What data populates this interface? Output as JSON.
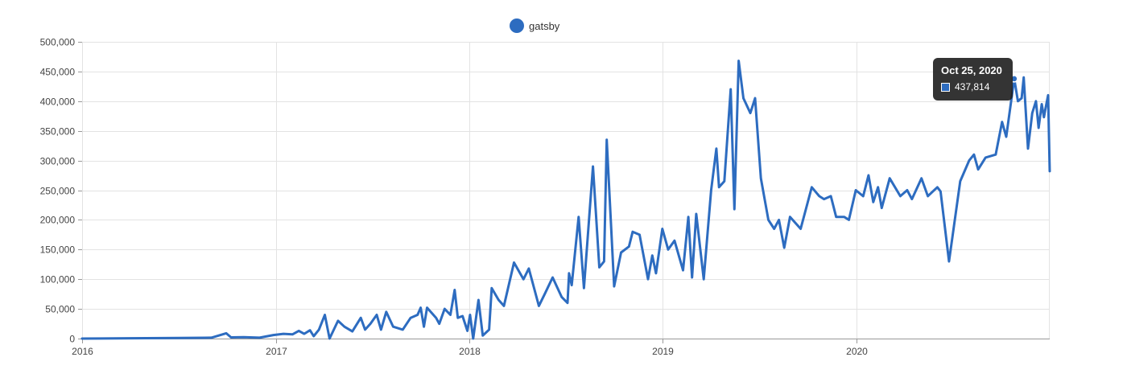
{
  "colors": {
    "series": "#2d6cc0",
    "grid": "#e3e3e3",
    "axis": "#999999"
  },
  "legend": {
    "label": "gatsby"
  },
  "tooltip": {
    "date": "Oct 25, 2020",
    "value": "437,814",
    "point_x": "2020-10-25",
    "point_y": 437814
  },
  "chart_data": {
    "type": "line",
    "title": "",
    "xlabel": "",
    "ylabel": "",
    "ylim": [
      0,
      500000
    ],
    "xlim": [
      "2016-01-01",
      "2020-12-31"
    ],
    "y_ticks": [
      {
        "value": 0,
        "label": "0"
      },
      {
        "value": 50000,
        "label": "50,000"
      },
      {
        "value": 100000,
        "label": "100,000"
      },
      {
        "value": 150000,
        "label": "150,000"
      },
      {
        "value": 200000,
        "label": "200,000"
      },
      {
        "value": 250000,
        "label": "250,000"
      },
      {
        "value": 300000,
        "label": "300,000"
      },
      {
        "value": 350000,
        "label": "350,000"
      },
      {
        "value": 400000,
        "label": "400,000"
      },
      {
        "value": 450000,
        "label": "450,000"
      },
      {
        "value": 500000,
        "label": "500,000"
      }
    ],
    "x_ticks": [
      {
        "value": "2016-01-01",
        "label": "2016"
      },
      {
        "value": "2017-01-01",
        "label": "2017"
      },
      {
        "value": "2018-01-01",
        "label": "2018"
      },
      {
        "value": "2019-01-01",
        "label": "2019"
      },
      {
        "value": "2020-01-01",
        "label": "2020"
      }
    ],
    "series": [
      {
        "name": "gatsby",
        "points": [
          [
            "2016-01-01",
            0
          ],
          [
            "2016-04-01",
            500
          ],
          [
            "2016-07-01",
            1000
          ],
          [
            "2016-09-01",
            1500
          ],
          [
            "2016-09-29",
            9000
          ],
          [
            "2016-10-08",
            2000
          ],
          [
            "2016-11-01",
            2500
          ],
          [
            "2016-12-01",
            1500
          ],
          [
            "2016-12-27",
            6000
          ],
          [
            "2017-01-15",
            8000
          ],
          [
            "2017-02-01",
            7000
          ],
          [
            "2017-02-13",
            13000
          ],
          [
            "2017-02-23",
            8000
          ],
          [
            "2017-03-06",
            14000
          ],
          [
            "2017-03-13",
            4000
          ],
          [
            "2017-03-23",
            15000
          ],
          [
            "2017-04-03",
            40000
          ],
          [
            "2017-04-12",
            0
          ],
          [
            "2017-04-28",
            30000
          ],
          [
            "2017-05-10",
            20000
          ],
          [
            "2017-05-25",
            12000
          ],
          [
            "2017-06-10",
            35000
          ],
          [
            "2017-06-18",
            15000
          ],
          [
            "2017-06-28",
            25000
          ],
          [
            "2017-07-10",
            40000
          ],
          [
            "2017-07-18",
            15000
          ],
          [
            "2017-07-28",
            45000
          ],
          [
            "2017-08-10",
            20000
          ],
          [
            "2017-08-28",
            15000
          ],
          [
            "2017-09-12",
            35000
          ],
          [
            "2017-09-25",
            40000
          ],
          [
            "2017-10-01",
            52000
          ],
          [
            "2017-10-07",
            20000
          ],
          [
            "2017-10-13",
            52000
          ],
          [
            "2017-10-30",
            35000
          ],
          [
            "2017-11-05",
            25000
          ],
          [
            "2017-11-15",
            50000
          ],
          [
            "2017-11-26",
            40000
          ],
          [
            "2017-12-04",
            82000
          ],
          [
            "2017-12-10",
            35000
          ],
          [
            "2017-12-19",
            38000
          ],
          [
            "2017-12-28",
            13000
          ],
          [
            "2018-01-02",
            40000
          ],
          [
            "2018-01-08",
            0
          ],
          [
            "2018-01-18",
            65000
          ],
          [
            "2018-01-26",
            5000
          ],
          [
            "2018-02-07",
            15000
          ],
          [
            "2018-02-12",
            85000
          ],
          [
            "2018-02-25",
            65000
          ],
          [
            "2018-03-07",
            55000
          ],
          [
            "2018-03-26",
            128000
          ],
          [
            "2018-04-13",
            100000
          ],
          [
            "2018-04-23",
            118000
          ],
          [
            "2018-05-12",
            55000
          ],
          [
            "2018-05-23",
            75000
          ],
          [
            "2018-06-07",
            103000
          ],
          [
            "2018-06-24",
            70000
          ],
          [
            "2018-07-05",
            60000
          ],
          [
            "2018-07-08",
            110000
          ],
          [
            "2018-07-13",
            90000
          ],
          [
            "2018-07-26",
            205000
          ],
          [
            "2018-08-05",
            85000
          ],
          [
            "2018-08-22",
            290000
          ],
          [
            "2018-09-03",
            120000
          ],
          [
            "2018-09-12",
            130000
          ],
          [
            "2018-09-17",
            335000
          ],
          [
            "2018-10-01",
            88000
          ],
          [
            "2018-10-14",
            145000
          ],
          [
            "2018-10-29",
            155000
          ],
          [
            "2018-11-05",
            180000
          ],
          [
            "2018-11-18",
            175000
          ],
          [
            "2018-12-04",
            100000
          ],
          [
            "2018-12-12",
            140000
          ],
          [
            "2018-12-19",
            110000
          ],
          [
            "2018-12-31",
            185000
          ],
          [
            "2019-01-11",
            150000
          ],
          [
            "2019-01-23",
            165000
          ],
          [
            "2019-02-08",
            115000
          ],
          [
            "2019-02-18",
            205000
          ],
          [
            "2019-02-25",
            103000
          ],
          [
            "2019-03-05",
            210000
          ],
          [
            "2019-03-19",
            100000
          ],
          [
            "2019-04-02",
            250000
          ],
          [
            "2019-04-12",
            320000
          ],
          [
            "2019-04-17",
            255000
          ],
          [
            "2019-04-27",
            265000
          ],
          [
            "2019-05-09",
            420000
          ],
          [
            "2019-05-16",
            218000
          ],
          [
            "2019-05-24",
            468000
          ],
          [
            "2019-06-02",
            405000
          ],
          [
            "2019-06-15",
            380000
          ],
          [
            "2019-06-24",
            405000
          ],
          [
            "2019-07-05",
            270000
          ],
          [
            "2019-07-19",
            200000
          ],
          [
            "2019-07-30",
            185000
          ],
          [
            "2019-08-08",
            200000
          ],
          [
            "2019-08-18",
            153000
          ],
          [
            "2019-08-29",
            205000
          ],
          [
            "2019-09-18",
            185000
          ],
          [
            "2019-10-09",
            255000
          ],
          [
            "2019-10-23",
            240000
          ],
          [
            "2019-11-01",
            235000
          ],
          [
            "2019-11-14",
            240000
          ],
          [
            "2019-11-24",
            205000
          ],
          [
            "2019-12-09",
            205000
          ],
          [
            "2019-12-18",
            200000
          ],
          [
            "2019-12-31",
            250000
          ],
          [
            "2020-01-14",
            240000
          ],
          [
            "2020-01-24",
            275000
          ],
          [
            "2020-02-02",
            230000
          ],
          [
            "2020-02-11",
            255000
          ],
          [
            "2020-02-18",
            220000
          ],
          [
            "2020-03-04",
            270000
          ],
          [
            "2020-03-24",
            240000
          ],
          [
            "2020-04-06",
            250000
          ],
          [
            "2020-04-15",
            235000
          ],
          [
            "2020-05-03",
            270000
          ],
          [
            "2020-05-15",
            240000
          ],
          [
            "2020-06-02",
            255000
          ],
          [
            "2020-06-08",
            248000
          ],
          [
            "2020-06-24",
            130000
          ],
          [
            "2020-07-15",
            265000
          ],
          [
            "2020-08-01",
            300000
          ],
          [
            "2020-08-10",
            310000
          ],
          [
            "2020-08-18",
            285000
          ],
          [
            "2020-09-01",
            305000
          ],
          [
            "2020-09-20",
            310000
          ],
          [
            "2020-10-02",
            365000
          ],
          [
            "2020-10-10",
            340000
          ],
          [
            "2020-10-25",
            437814
          ],
          [
            "2020-11-01",
            400000
          ],
          [
            "2020-11-08",
            405000
          ],
          [
            "2020-11-12",
            440000
          ],
          [
            "2020-11-20",
            320000
          ],
          [
            "2020-11-28",
            380000
          ],
          [
            "2020-12-05",
            400000
          ],
          [
            "2020-12-10",
            355000
          ],
          [
            "2020-12-16",
            395000
          ],
          [
            "2020-12-20",
            373000
          ],
          [
            "2020-12-24",
            392000
          ],
          [
            "2020-12-28",
            410000
          ],
          [
            "2020-12-31",
            282000
          ]
        ]
      }
    ]
  }
}
